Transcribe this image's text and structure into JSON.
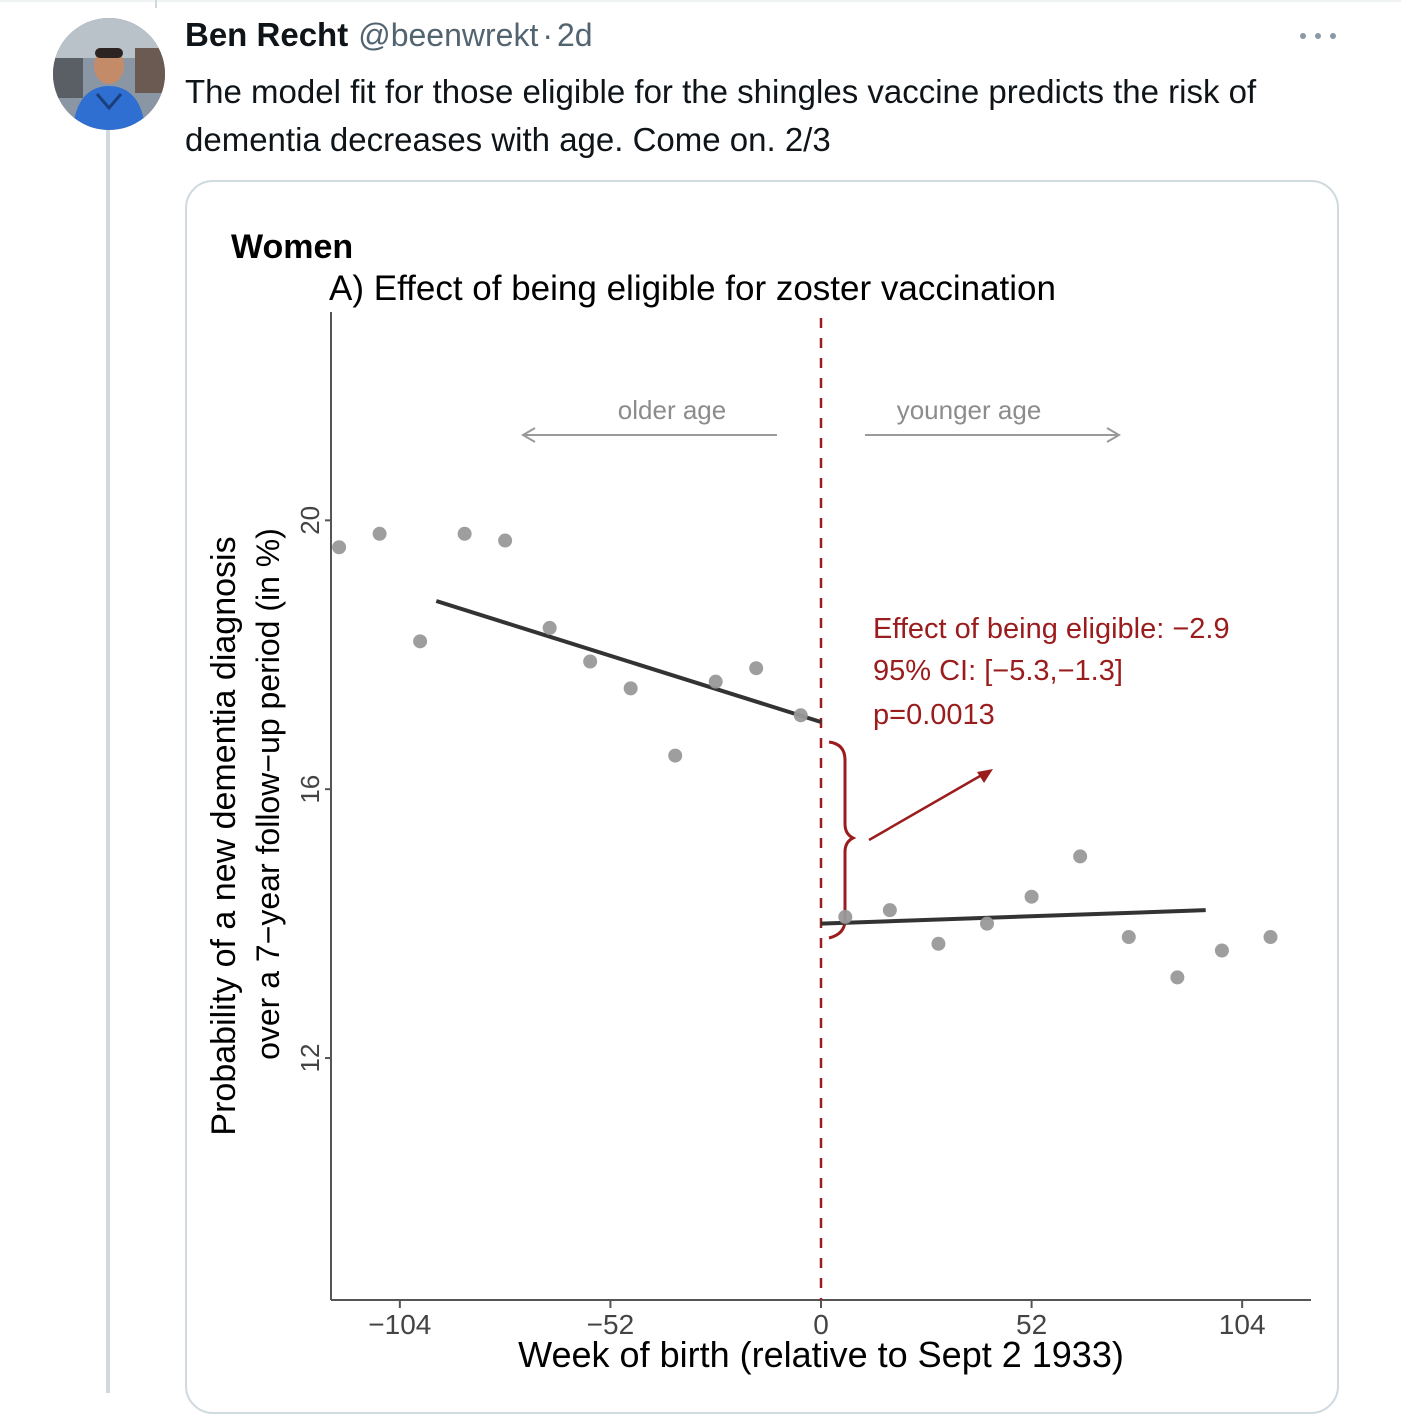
{
  "tweet": {
    "author_name": "Ben Recht",
    "handle": "@beenwrekt",
    "separator": "·",
    "time": "2d",
    "text": "The model fit for those eligible for the shingles vaccine predicts the risk of dementia decreases with age. Come on. 2/3",
    "more_icon": "more-horizontal-icon",
    "avatar_icon": "user-avatar-photo"
  },
  "chart_data": {
    "type": "scatter",
    "panel_title": "Women",
    "title": "A) Effect of being eligible for zoster vaccination",
    "xlabel": "Week of birth (relative to Sept 2 1933)",
    "ylabel_line1": "Probability of a new dementia diagnosis",
    "ylabel_line2": "over a 7−year follow−up period (in %)",
    "xlim": [
      -121,
      121
    ],
    "ylim": [
      8.4,
      23.1
    ],
    "x_ticks": [
      -104,
      -52,
      0,
      52,
      104
    ],
    "x_tick_labels": [
      "−104",
      "−52",
      "0",
      "52",
      "104"
    ],
    "y_ticks": [
      20,
      16,
      12
    ],
    "y_tick_labels": [
      "20",
      "16",
      "12"
    ],
    "grid": false,
    "points": [
      {
        "x": -119,
        "y": 19.6
      },
      {
        "x": -109,
        "y": 19.8
      },
      {
        "x": -99,
        "y": 18.2
      },
      {
        "x": -88,
        "y": 19.8
      },
      {
        "x": -78,
        "y": 19.7
      },
      {
        "x": -67,
        "y": 18.4
      },
      {
        "x": -57,
        "y": 17.9
      },
      {
        "x": -47,
        "y": 17.5
      },
      {
        "x": -36,
        "y": 16.5
      },
      {
        "x": -26,
        "y": 17.6
      },
      {
        "x": -16,
        "y": 17.8
      },
      {
        "x": -5,
        "y": 17.1
      },
      {
        "x": 6,
        "y": 14.1
      },
      {
        "x": 17,
        "y": 14.2
      },
      {
        "x": 29,
        "y": 13.7
      },
      {
        "x": 41,
        "y": 14.0
      },
      {
        "x": 52,
        "y": 14.4
      },
      {
        "x": 64,
        "y": 15.0
      },
      {
        "x": 76,
        "y": 13.8
      },
      {
        "x": 88,
        "y": 13.2
      },
      {
        "x": 99,
        "y": 13.6
      },
      {
        "x": 111,
        "y": 13.8
      }
    ],
    "fit_lines": [
      {
        "x": [
          -95,
          0
        ],
        "y": [
          18.8,
          17.0
        ]
      },
      {
        "x": [
          0,
          95
        ],
        "y": [
          14.0,
          14.2
        ]
      }
    ],
    "cutoff_x": 0,
    "annotations": {
      "older_age": "older age",
      "younger_age": "younger age",
      "effect_line1": "Effect of being eligible: −2.9",
      "effect_line2": "95% CI: [−5.3,−1.3]",
      "effect_line3": "p=0.0013"
    },
    "colors": {
      "points": "#999999",
      "fit_line": "#333333",
      "annotation": "#9b1c1c",
      "arrow_gray": "#9a9a9a"
    }
  }
}
